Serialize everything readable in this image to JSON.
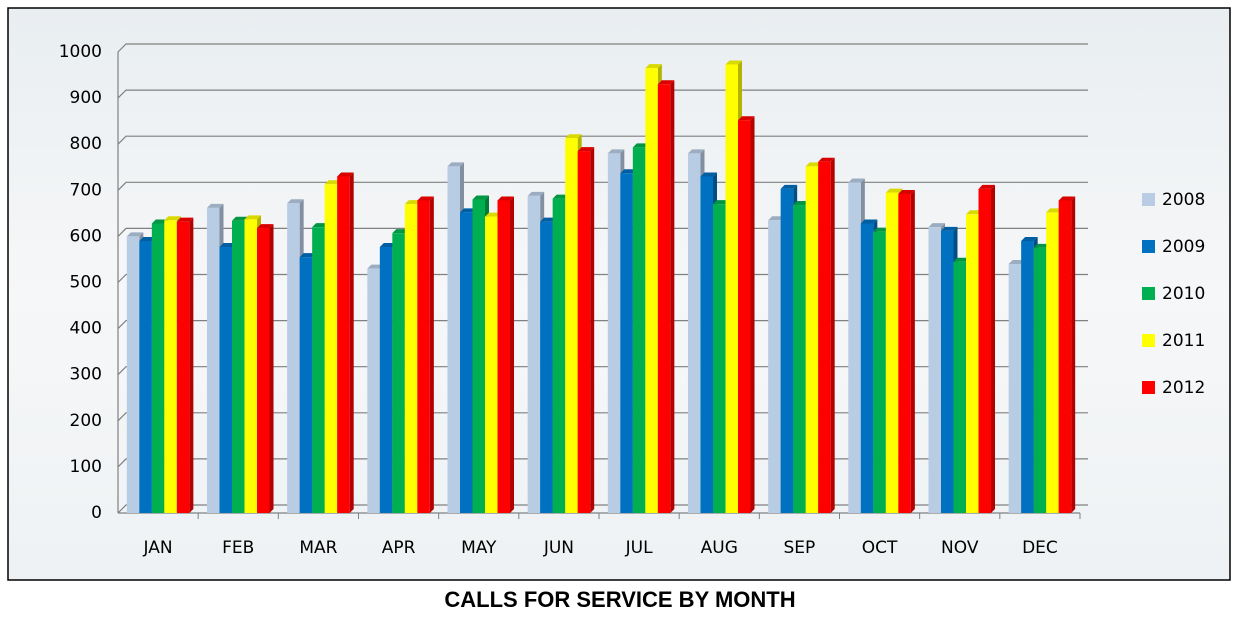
{
  "chart_data": {
    "type": "bar",
    "title": "CALLS FOR SERVICE BY MONTH",
    "categories": [
      "JAN",
      "FEB",
      "MAR",
      "APR",
      "MAY",
      "JUN",
      "JUL",
      "AUG",
      "SEP",
      "OCT",
      "NOV",
      "DEC"
    ],
    "series": [
      {
        "name": "2008",
        "color": "#b8cce4",
        "values": [
          600,
          662,
          672,
          530,
          752,
          688,
          780,
          780,
          635,
          717,
          620,
          540
        ]
      },
      {
        "name": "2009",
        "color": "#0070c0",
        "values": [
          590,
          577,
          555,
          577,
          652,
          632,
          737,
          730,
          703,
          628,
          612,
          590
        ]
      },
      {
        "name": "2010",
        "color": "#00b050",
        "values": [
          628,
          634,
          620,
          607,
          680,
          682,
          793,
          670,
          668,
          610,
          545,
          575
        ]
      },
      {
        "name": "2011",
        "color": "#ffff00",
        "values": [
          635,
          637,
          713,
          670,
          643,
          813,
          965,
          973,
          752,
          695,
          648,
          652
        ]
      },
      {
        "name": "2012",
        "color": "#ff0000",
        "values": [
          632,
          618,
          730,
          678,
          678,
          785,
          930,
          852,
          762,
          692,
          703,
          678
        ]
      }
    ],
    "ylim": [
      0,
      1000
    ],
    "yticks": [
      0,
      100,
      200,
      300,
      400,
      500,
      600,
      700,
      800,
      900,
      1000
    ],
    "grid": true,
    "legend": "right"
  }
}
